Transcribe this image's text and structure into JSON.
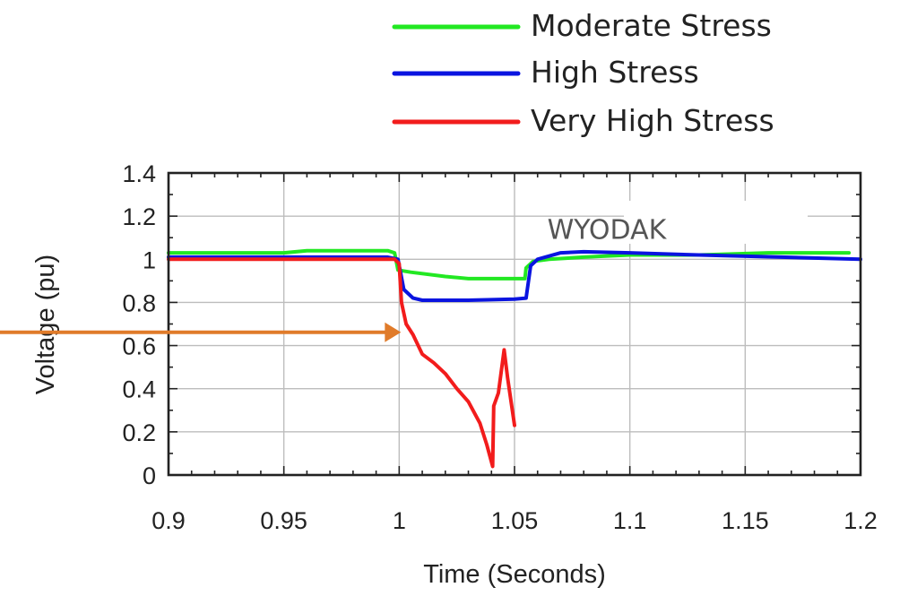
{
  "chart_data": {
    "type": "line",
    "title": "",
    "xlabel": "Time (Seconds)",
    "ylabel": "Voltage (pu)",
    "xlim": [
      0.9,
      1.2
    ],
    "ylim": [
      0,
      1.4
    ],
    "x_ticks": [
      "0.9",
      "0.95",
      "1",
      "1.05",
      "1.1",
      "1.15",
      "1.2"
    ],
    "y_ticks": [
      "0",
      "0.2",
      "0.4",
      "0.6",
      "0.8",
      "1",
      "1.2",
      "1.4"
    ],
    "grid": true,
    "legend_position": "top-right, above plot",
    "annotation": {
      "text": "WYODAK",
      "x": 1.09,
      "y": 1.14
    },
    "arrow": {
      "color": "#e07b2a",
      "points_to": {
        "x": 1.0,
        "y": 0.67
      }
    },
    "series": [
      {
        "name": "Moderate Stress",
        "color": "#22e822",
        "points": [
          [
            0.9,
            1.03
          ],
          [
            0.95,
            1.03
          ],
          [
            0.96,
            1.04
          ],
          [
            0.995,
            1.04
          ],
          [
            0.998,
            1.03
          ],
          [
            0.9995,
            0.95
          ],
          [
            1.005,
            0.94
          ],
          [
            1.02,
            0.92
          ],
          [
            1.03,
            0.91
          ],
          [
            1.04,
            0.91
          ],
          [
            1.0545,
            0.91
          ],
          [
            1.055,
            0.96
          ],
          [
            1.058,
            0.99
          ],
          [
            1.065,
            1.0
          ],
          [
            1.08,
            1.01
          ],
          [
            1.1,
            1.02
          ],
          [
            1.13,
            1.02
          ],
          [
            1.16,
            1.03
          ],
          [
            1.195,
            1.03
          ]
        ]
      },
      {
        "name": "High Stress",
        "color": "#0a14e0",
        "points": [
          [
            0.9,
            1.01
          ],
          [
            0.995,
            1.01
          ],
          [
            0.9995,
            1.0
          ],
          [
            1.002,
            0.86
          ],
          [
            1.006,
            0.82
          ],
          [
            1.01,
            0.81
          ],
          [
            1.03,
            0.81
          ],
          [
            1.05,
            0.815
          ],
          [
            1.055,
            0.82
          ],
          [
            1.057,
            0.97
          ],
          [
            1.06,
            1.0
          ],
          [
            1.07,
            1.03
          ],
          [
            1.08,
            1.035
          ],
          [
            1.1,
            1.03
          ],
          [
            1.13,
            1.02
          ],
          [
            1.2,
            1.0
          ]
        ]
      },
      {
        "name": "Very High Stress",
        "color": "#f21c1c",
        "points": [
          [
            0.9,
            1.0
          ],
          [
            0.998,
            1.0
          ],
          [
            1.0,
            0.98
          ],
          [
            1.001,
            0.8
          ],
          [
            1.003,
            0.7
          ],
          [
            1.006,
            0.65
          ],
          [
            1.01,
            0.56
          ],
          [
            1.015,
            0.52
          ],
          [
            1.02,
            0.47
          ],
          [
            1.025,
            0.4
          ],
          [
            1.03,
            0.34
          ],
          [
            1.035,
            0.24
          ],
          [
            1.038,
            0.14
          ],
          [
            1.0405,
            0.04
          ],
          [
            1.041,
            0.32
          ],
          [
            1.043,
            0.38
          ],
          [
            1.0455,
            0.58
          ],
          [
            1.047,
            0.45
          ],
          [
            1.05,
            0.23
          ]
        ]
      }
    ]
  }
}
